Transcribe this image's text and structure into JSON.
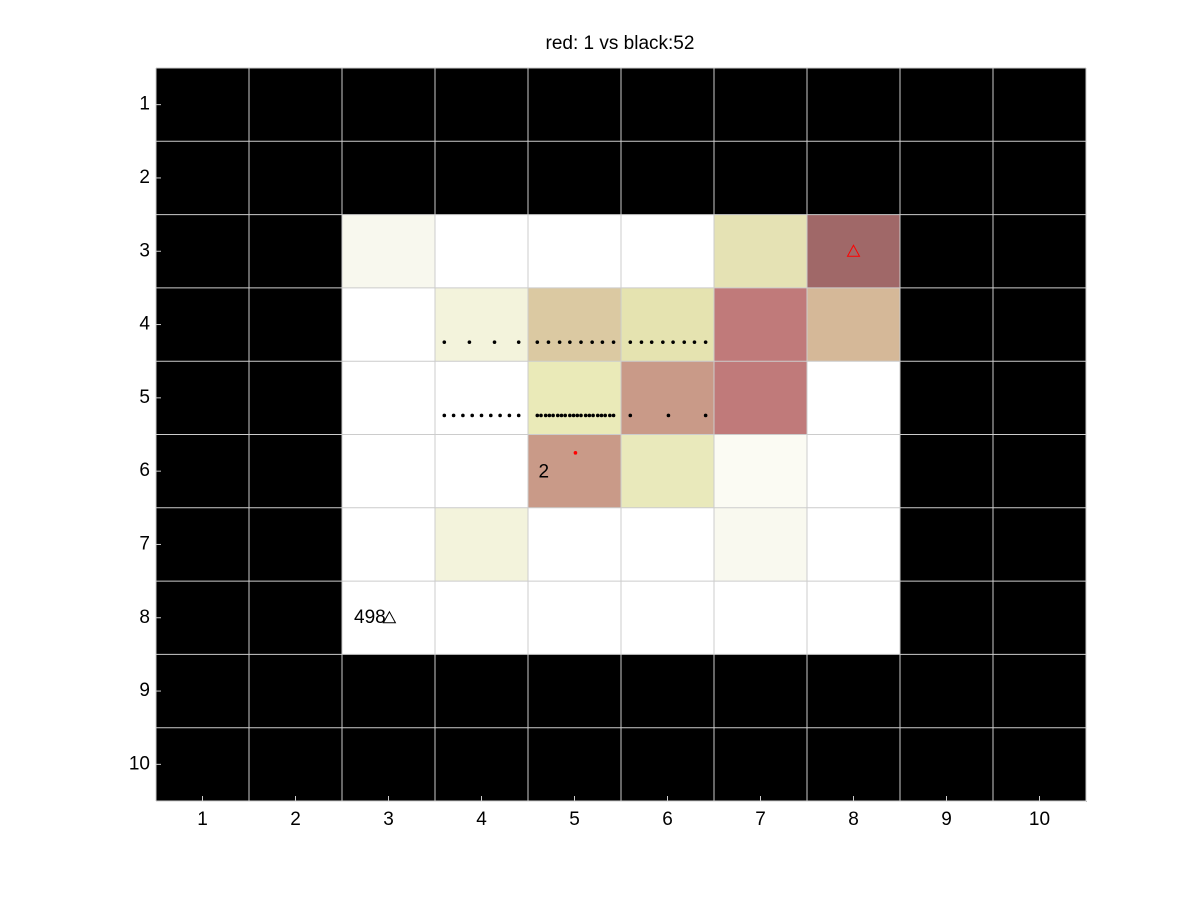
{
  "chart_data": {
    "type": "grid",
    "title": "red: 1 vs black:52",
    "xlim": [
      0.5,
      10.5
    ],
    "ylim": [
      0.5,
      10.5
    ],
    "y_reversed": true,
    "xticks": [
      1,
      2,
      3,
      4,
      5,
      6,
      7,
      8,
      9,
      10
    ],
    "yticks": [
      1,
      2,
      3,
      4,
      5,
      6,
      7,
      8,
      9,
      10
    ],
    "grid_color": "#cccccc",
    "cell_colors": [
      [
        "#000000",
        "#000000",
        "#000000",
        "#000000",
        "#000000",
        "#000000",
        "#000000",
        "#000000",
        "#000000",
        "#000000"
      ],
      [
        "#000000",
        "#000000",
        "#000000",
        "#000000",
        "#000000",
        "#000000",
        "#000000",
        "#000000",
        "#000000",
        "#000000"
      ],
      [
        "#000000",
        "#000000",
        "#f8f8ee",
        "#ffffff",
        "#ffffff",
        "#ffffff",
        "#e5e2b4",
        "#a06868",
        "#000000",
        "#000000"
      ],
      [
        "#000000",
        "#000000",
        "#ffffff",
        "#f3f3dc",
        "#dbc9a2",
        "#e5e3b0",
        "#c07a7a",
        "#d5b898",
        "#000000",
        "#000000"
      ],
      [
        "#000000",
        "#000000",
        "#ffffff",
        "#ffffff",
        "#eaeab8",
        "#c99a88",
        "#c07a7a",
        "#ffffff",
        "#000000",
        "#000000"
      ],
      [
        "#000000",
        "#000000",
        "#ffffff",
        "#ffffff",
        "#c99a88",
        "#e9e9bb",
        "#fbfbf3",
        "#ffffff",
        "#000000",
        "#000000"
      ],
      [
        "#000000",
        "#000000",
        "#ffffff",
        "#f3f3dc",
        "#ffffff",
        "#ffffff",
        "#f9f9ef",
        "#ffffff",
        "#000000",
        "#000000"
      ],
      [
        "#000000",
        "#000000",
        "#ffffff",
        "#ffffff",
        "#ffffff",
        "#ffffff",
        "#ffffff",
        "#ffffff",
        "#000000",
        "#000000"
      ],
      [
        "#000000",
        "#000000",
        "#000000",
        "#000000",
        "#000000",
        "#000000",
        "#000000",
        "#000000",
        "#000000",
        "#000000"
      ],
      [
        "#000000",
        "#000000",
        "#000000",
        "#000000",
        "#000000",
        "#000000",
        "#000000",
        "#000000",
        "#000000",
        "#000000"
      ]
    ],
    "series": [
      {
        "marker": "dot",
        "color": "#000000",
        "x": [
          3.6,
          3.87,
          4.14,
          4.4,
          4.6,
          4.72,
          4.84,
          4.95,
          5.07,
          5.19,
          5.3,
          5.42,
          5.6,
          5.72,
          5.83,
          5.95,
          6.06,
          6.18,
          6.29,
          6.41
        ],
        "y": [
          4.24,
          4.24,
          4.24,
          4.24,
          4.24,
          4.24,
          4.24,
          4.24,
          4.24,
          4.24,
          4.24,
          4.24,
          4.24,
          4.24,
          4.24,
          4.24,
          4.24,
          4.24,
          4.24,
          4.24
        ]
      },
      {
        "marker": "dot",
        "color": "#000000",
        "x": [
          3.6,
          3.7,
          3.8,
          3.9,
          4.0,
          4.1,
          4.2,
          4.3,
          4.4,
          4.6,
          4.64,
          4.69,
          4.73,
          4.77,
          4.82,
          4.86,
          4.9,
          4.95,
          4.99,
          5.03,
          5.07,
          5.12,
          5.16,
          5.2,
          5.25,
          5.29,
          5.33,
          5.38,
          5.42,
          5.6,
          6.01,
          6.41
        ],
        "y": [
          5.24,
          5.24,
          5.24,
          5.24,
          5.24,
          5.24,
          5.24,
          5.24,
          5.24,
          5.24,
          5.24,
          5.24,
          5.24,
          5.24,
          5.24,
          5.24,
          5.24,
          5.24,
          5.24,
          5.24,
          5.24,
          5.24,
          5.24,
          5.24,
          5.24,
          5.24,
          5.24,
          5.24,
          5.24,
          5.24,
          5.24,
          5.24
        ]
      },
      {
        "marker": "dot",
        "color": "#ff0000",
        "x": [
          5.01
        ],
        "y": [
          5.75
        ]
      },
      {
        "marker": "triangle",
        "color": "#ff0000",
        "x": [
          8.0
        ],
        "y": [
          3.0
        ]
      },
      {
        "marker": "triangle",
        "color": "#000000",
        "x": [
          3.01
        ],
        "y": [
          8.0
        ]
      }
    ],
    "annotations": [
      {
        "text": "2",
        "x": 4.67,
        "y": 6.02
      },
      {
        "text": "498",
        "x": 2.8,
        "y": 8.0
      }
    ]
  }
}
